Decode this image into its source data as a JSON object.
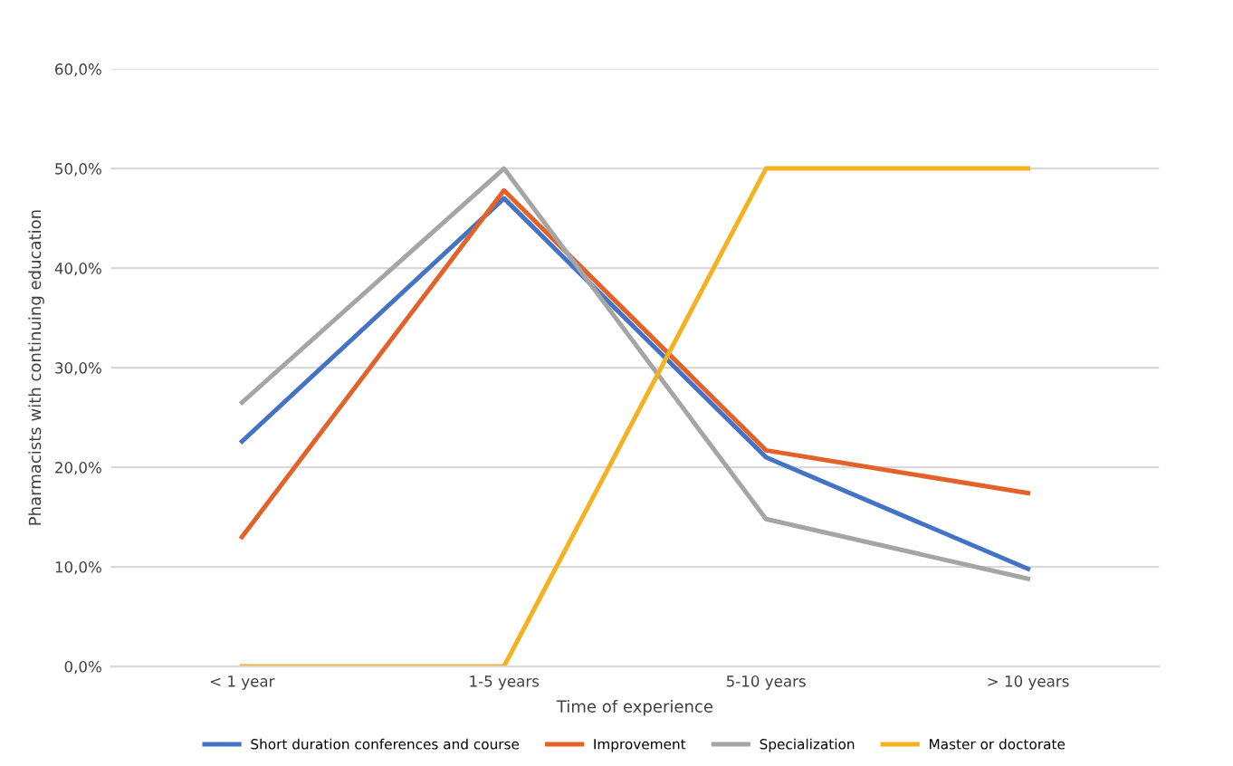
{
  "chart_data": {
    "type": "line",
    "xlabel": "Time of experience",
    "ylabel": "Pharmacists with continuing education",
    "categories": [
      "< 1 year",
      "1-5 years",
      "5-10 years",
      "> 10 years"
    ],
    "series": [
      {
        "name": "Short duration conferences and course",
        "color": "#4472c4",
        "values": [
          22.6,
          47.0,
          21.0,
          9.8
        ]
      },
      {
        "name": "Improvement",
        "color": "#e2622a",
        "values": [
          13.0,
          47.8,
          21.7,
          17.4
        ]
      },
      {
        "name": "Specialization",
        "color": "#a5a5a5",
        "values": [
          26.5,
          50.0,
          14.8,
          8.8
        ]
      },
      {
        "name": "Master or doctorate",
        "color": "#f4b222",
        "values": [
          0,
          0,
          50.0,
          50.0
        ]
      }
    ],
    "ylim": [
      0,
      60
    ],
    "yticks": [
      {
        "value": 0,
        "label": "0,0%"
      },
      {
        "value": 10,
        "label": "10,0%"
      },
      {
        "value": 20,
        "label": "20,0%"
      },
      {
        "value": 30,
        "label": "30,0%"
      },
      {
        "value": 40,
        "label": "40,0%"
      },
      {
        "value": 50,
        "label": "50,0%"
      },
      {
        "value": 60,
        "label": "60,0%"
      }
    ],
    "grid": "y",
    "legend": "bottom",
    "marker": "none",
    "line_style": "solid"
  }
}
